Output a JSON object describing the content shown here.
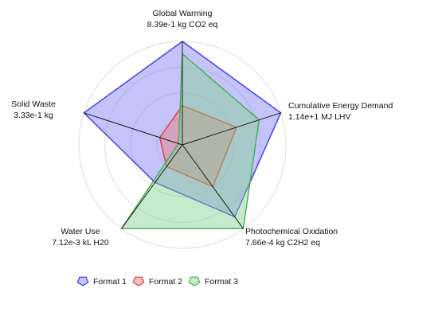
{
  "chart_data": {
    "type": "radar",
    "title": "",
    "scale_max": 1.0,
    "rings": [
      0.25,
      0.5,
      0.75,
      1.0
    ],
    "grid": true,
    "legend_position": "bottom-center",
    "axes": [
      {
        "name": "Global Warming",
        "max_label": "8.39e-1 kg CO2 eq"
      },
      {
        "name": "Cumulative Energy Demand",
        "max_label": "1.14e+1 MJ LHV"
      },
      {
        "name": "Photochemical Oxidation",
        "max_label": "7.66e-4 kg C2H2 eq"
      },
      {
        "name": "Water Use",
        "max_label": "7.12e-3 kL H20"
      },
      {
        "name": "Solid Waste",
        "max_label": "3.33e-1 kg"
      }
    ],
    "series": [
      {
        "name": "Format 1",
        "values": [
          1.0,
          1.0,
          0.86,
          0.45,
          1.0
        ],
        "stroke": "#3a3af0",
        "fill": "#7d7df5"
      },
      {
        "name": "Format 2",
        "values": [
          0.38,
          0.55,
          0.5,
          0.26,
          0.23
        ],
        "stroke": "#e03a3a",
        "fill": "#e87a7a"
      },
      {
        "name": "Format 3",
        "values": [
          0.88,
          0.78,
          1.0,
          1.0,
          0.04
        ],
        "stroke": "#3fb04a",
        "fill": "#86d08e"
      }
    ]
  }
}
